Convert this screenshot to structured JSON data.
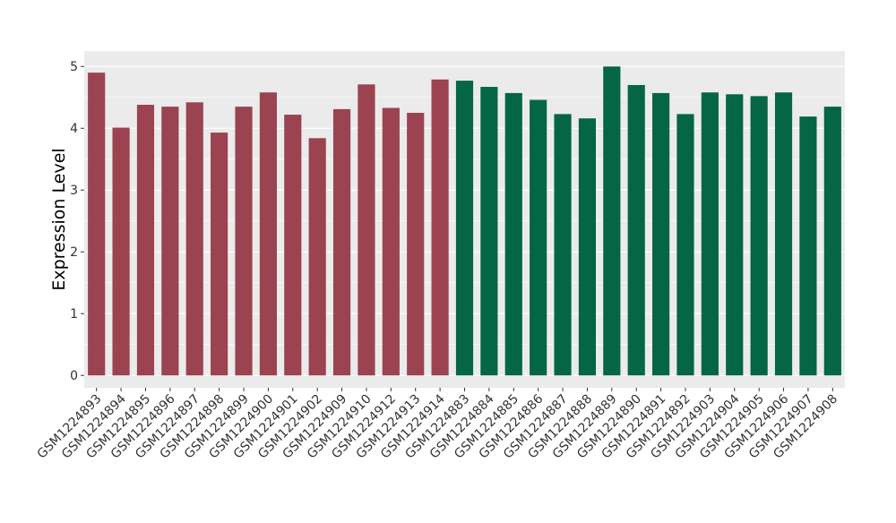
{
  "chart_data": {
    "type": "bar",
    "title": "",
    "xlabel": "",
    "ylabel": "Expression Level",
    "ylim": [
      -0.2,
      5.25
    ],
    "yticks": [
      0,
      1,
      2,
      3,
      4,
      5
    ],
    "grid": true,
    "legend": "none",
    "categories": [
      "GSM1224893",
      "GSM1224894",
      "GSM1224895",
      "GSM1224896",
      "GSM1224897",
      "GSM1224898",
      "GSM1224899",
      "GSM1224900",
      "GSM1224901",
      "GSM1224902",
      "GSM1224909",
      "GSM1224910",
      "GSM1224912",
      "GSM1224913",
      "GSM1224914",
      "GSM1224883",
      "GSM1224884",
      "GSM1224885",
      "GSM1224886",
      "GSM1224887",
      "GSM1224888",
      "GSM1224889",
      "GSM1224890",
      "GSM1224891",
      "GSM1224892",
      "GSM1224903",
      "GSM1224904",
      "GSM1224905",
      "GSM1224906",
      "GSM1224907",
      "GSM1224908"
    ],
    "values": [
      4.9,
      4.01,
      4.38,
      4.35,
      4.42,
      3.93,
      4.35,
      4.58,
      4.22,
      3.84,
      4.31,
      4.71,
      4.33,
      4.25,
      4.79,
      4.77,
      4.67,
      4.57,
      4.46,
      4.23,
      4.16,
      5.0,
      4.7,
      4.57,
      4.23,
      4.58,
      4.55,
      4.52,
      4.58,
      4.19,
      4.35
    ],
    "group_colors": [
      "#9B4350",
      "#046645"
    ],
    "colors": [
      "#9B4350",
      "#9B4350",
      "#9B4350",
      "#9B4350",
      "#9B4350",
      "#9B4350",
      "#9B4350",
      "#9B4350",
      "#9B4350",
      "#9B4350",
      "#9B4350",
      "#9B4350",
      "#9B4350",
      "#9B4350",
      "#9B4350",
      "#046645",
      "#046645",
      "#046645",
      "#046645",
      "#046645",
      "#046645",
      "#046645",
      "#046645",
      "#046645",
      "#046645",
      "#046645",
      "#046645",
      "#046645",
      "#046645",
      "#046645",
      "#046645"
    ]
  }
}
